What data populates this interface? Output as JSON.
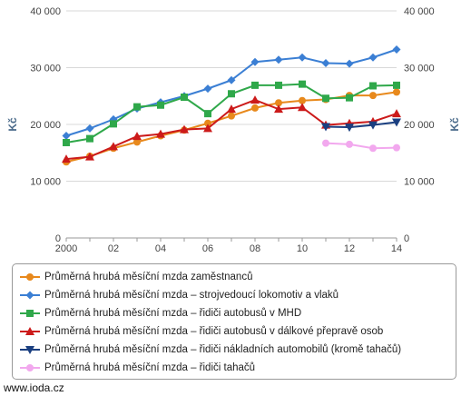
{
  "chart_data": {
    "type": "line",
    "title": "",
    "ylabel": "Kč",
    "ylabel_right": "Kč",
    "x": [
      2000,
      2001,
      2002,
      2003,
      2004,
      2005,
      2006,
      2007,
      2008,
      2009,
      2010,
      2011,
      2012,
      2013,
      2014
    ],
    "x_tick_labels": [
      "2000",
      "02",
      "04",
      "06",
      "08",
      "10",
      "12",
      "14"
    ],
    "x_tick_values": [
      2000,
      2002,
      2004,
      2006,
      2008,
      2010,
      2012,
      2014
    ],
    "y_ticks": [
      "0",
      "10 000",
      "20 000",
      "30 000",
      "40 000"
    ],
    "y_tick_values": [
      0,
      10000,
      20000,
      30000,
      40000
    ],
    "ylim": [
      0,
      40000
    ],
    "xlim": [
      2000,
      2014
    ],
    "grid": true,
    "legend_position": "bottom",
    "series": [
      {
        "name": "Průměrná hrubá měsíční mzda zaměstnanců",
        "color": "#e8891c",
        "marker": "circle",
        "values": [
          13400,
          14400,
          15800,
          16900,
          18000,
          19000,
          20200,
          21500,
          22900,
          23800,
          24200,
          24400,
          25100,
          25100,
          25700
        ]
      },
      {
        "name": "Průměrná hrubá měsíční mzda – strojvedoucí lokomotiv a vlaků",
        "color": "#3b7fd4",
        "marker": "diamond",
        "values": [
          18000,
          19300,
          20900,
          22800,
          23900,
          25000,
          26300,
          27800,
          31000,
          31400,
          31800,
          30800,
          30700,
          31800,
          33200
        ]
      },
      {
        "name": "Průměrná hrubá měsíční mzda – řidiči autobusů v MHD",
        "color": "#2fa84a",
        "marker": "square",
        "values": [
          16800,
          17500,
          20100,
          23100,
          23400,
          24800,
          21900,
          25400,
          26900,
          26900,
          27100,
          24600,
          24700,
          26800,
          26900
        ]
      },
      {
        "name": "Průměrná hrubá měsíční mzda – řidiči autobusů v dálkové přepravě osob",
        "color": "#cc1a1a",
        "marker": "triangle",
        "values": [
          13900,
          14300,
          16100,
          17900,
          18300,
          19100,
          19300,
          22700,
          24300,
          22700,
          23000,
          19900,
          20200,
          20500,
          21900
        ]
      },
      {
        "name": "Průměrná hrubá měsíční mzda – řidiči nákladních automobilů (kromě tahačů)",
        "color": "#1a3f80",
        "marker": "triangle-down",
        "values": [
          null,
          null,
          null,
          null,
          null,
          null,
          null,
          null,
          null,
          null,
          null,
          19600,
          19500,
          19900,
          20400
        ]
      },
      {
        "name": "Průměrná hrubá měsíční mzda – řidiči tahačů",
        "color": "#f2a8ee",
        "marker": "circle",
        "values": [
          null,
          null,
          null,
          null,
          null,
          null,
          null,
          null,
          null,
          null,
          null,
          16700,
          16500,
          15800,
          15900
        ]
      }
    ]
  },
  "source_label": "www.ioda.cz"
}
